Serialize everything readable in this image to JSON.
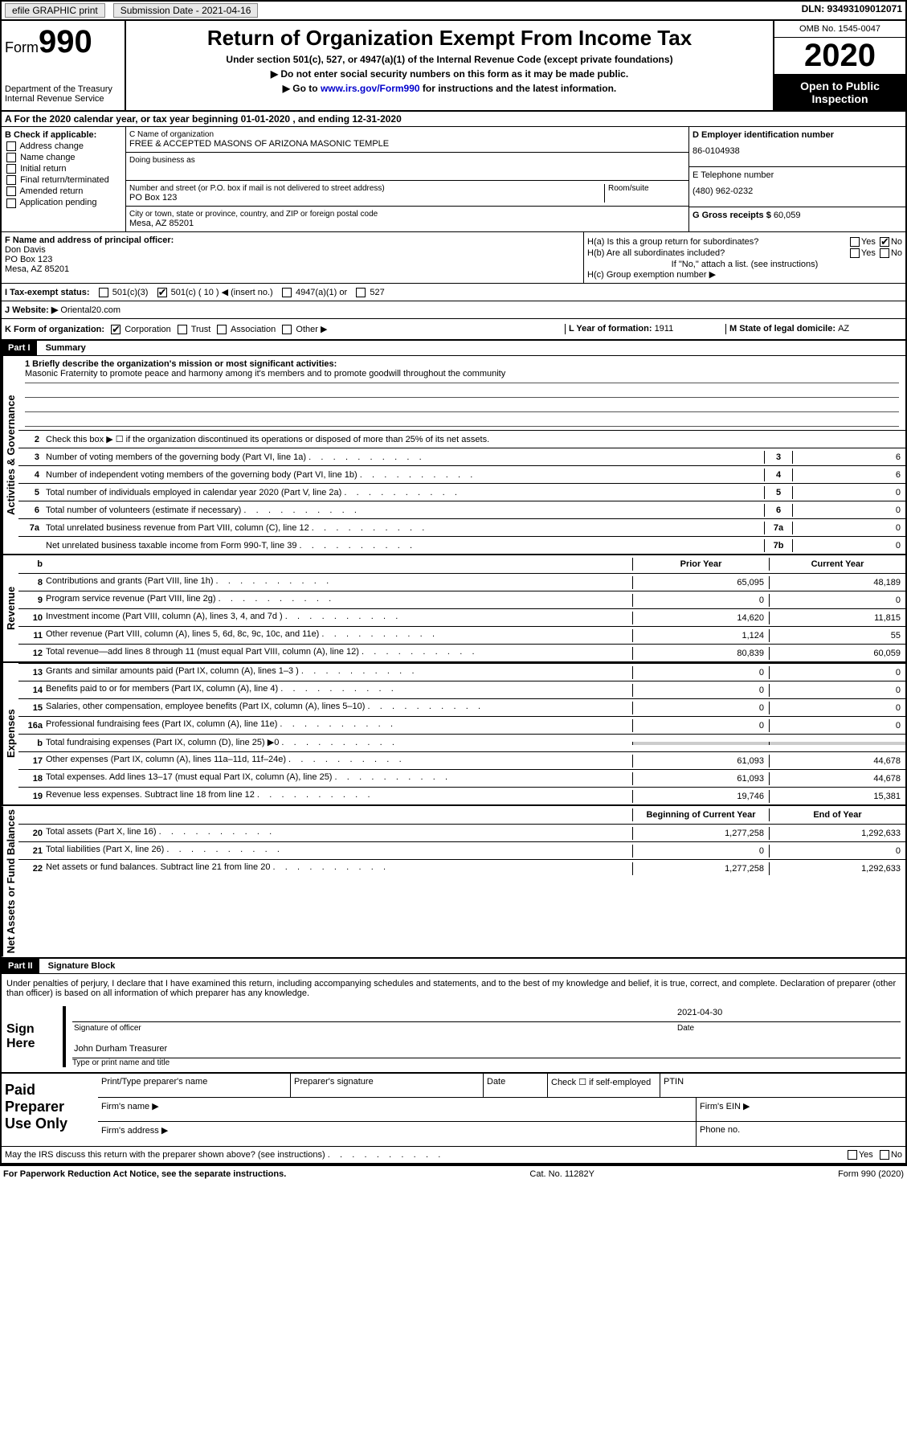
{
  "topbar": {
    "efile": "efile GRAPHIC print",
    "submission_date_label": "Submission Date - 2021-04-16",
    "dln": "DLN: 93493109012071"
  },
  "header": {
    "form_label": "Form",
    "form_number": "990",
    "title": "Return of Organization Exempt From Income Tax",
    "subtitle": "Under section 501(c), 527, or 4947(a)(1) of the Internal Revenue Code (except private foundations)",
    "ssn_line": "▶ Do not enter social security numbers on this form as it may be made public.",
    "goto_prefix": "▶ Go to ",
    "goto_link": "www.irs.gov/Form990",
    "goto_suffix": " for instructions and the latest information.",
    "dept": "Department of the Treasury\nInternal Revenue Service",
    "omb": "OMB No. 1545-0047",
    "year": "2020",
    "inspection": "Open to Public Inspection"
  },
  "row_a": "A For the 2020 calendar year, or tax year beginning 01-01-2020    , and ending 12-31-2020",
  "col_b": {
    "title": "B Check if applicable:",
    "items": [
      "Address change",
      "Name change",
      "Initial return",
      "Final return/terminated",
      "Amended return",
      "Application pending"
    ]
  },
  "col_c": {
    "name_caption": "C Name of organization",
    "name": "FREE & ACCEPTED MASONS OF ARIZONA MASONIC TEMPLE",
    "dba_caption": "Doing business as",
    "addr_caption": "Number and street (or P.O. box if mail is not delivered to street address)",
    "room_caption": "Room/suite",
    "addr": "PO Box 123",
    "city_caption": "City or town, state or province, country, and ZIP or foreign postal code",
    "city": "Mesa, AZ  85201"
  },
  "col_d": {
    "ein_label": "D Employer identification number",
    "ein": "86-0104938",
    "phone_label": "E Telephone number",
    "phone": "(480) 962-0232",
    "receipts_label": "G Gross receipts $ ",
    "receipts": "60,059"
  },
  "col_f": {
    "label": "F  Name and address of principal officer:",
    "name": "Don Davis",
    "addr1": "PO Box 123",
    "addr2": "Mesa, AZ   85201"
  },
  "col_h": {
    "ha": "H(a)  Is this a group return for subordinates?",
    "hb": "H(b)  Are all subordinates included?",
    "hb_note": "If \"No,\" attach a list. (see instructions)",
    "hc": "H(c)  Group exemption number ▶",
    "yes": "Yes",
    "no": "No"
  },
  "row_i": {
    "label": "I   Tax-exempt status:",
    "c3": "501(c)(3)",
    "c_other": "501(c) ( 10 ) ◀ (insert no.)",
    "a1": "4947(a)(1) or",
    "527": "527"
  },
  "row_j": {
    "label": "J   Website: ▶",
    "value": "Oriental20.com"
  },
  "row_k": {
    "label": "K Form of organization:",
    "corp": "Corporation",
    "trust": "Trust",
    "assoc": "Association",
    "other": "Other ▶",
    "l_label": "L Year of formation: ",
    "l_val": "1911",
    "m_label": "M State of legal domicile: ",
    "m_val": "AZ"
  },
  "part1": {
    "header": "Part I",
    "title": "Summary",
    "tabs": {
      "gov": "Activities & Governance",
      "rev": "Revenue",
      "exp": "Expenses",
      "net": "Net Assets or Fund Balances"
    },
    "line1_label": "1   Briefly describe the organization's mission or most significant activities:",
    "mission": "Masonic Fraternity to promote peace and harmony among it's members and to promote goodwill throughout the community",
    "line2": "Check this box ▶ ☐  if the organization discontinued its operations or disposed of more than 25% of its net assets.",
    "gov_lines": [
      {
        "n": "3",
        "t": "Number of voting members of the governing body (Part VI, line 1a)",
        "id": "3",
        "v": "6"
      },
      {
        "n": "4",
        "t": "Number of independent voting members of the governing body (Part VI, line 1b)",
        "id": "4",
        "v": "6"
      },
      {
        "n": "5",
        "t": "Total number of individuals employed in calendar year 2020 (Part V, line 2a)",
        "id": "5",
        "v": "0"
      },
      {
        "n": "6",
        "t": "Total number of volunteers (estimate if necessary)",
        "id": "6",
        "v": "0"
      },
      {
        "n": "7a",
        "t": "Total unrelated business revenue from Part VIII, column (C), line 12",
        "id": "7a",
        "v": "0"
      },
      {
        "n": "",
        "t": "Net unrelated business taxable income from Form 990-T, line 39",
        "id": "7b",
        "v": "0"
      }
    ],
    "col_headers": {
      "b": "b",
      "prior": "Prior Year",
      "current": "Current Year"
    },
    "rev_lines": [
      {
        "n": "8",
        "t": "Contributions and grants (Part VIII, line 1h)",
        "p": "65,095",
        "c": "48,189"
      },
      {
        "n": "9",
        "t": "Program service revenue (Part VIII, line 2g)",
        "p": "0",
        "c": "0"
      },
      {
        "n": "10",
        "t": "Investment income (Part VIII, column (A), lines 3, 4, and 7d )",
        "p": "14,620",
        "c": "11,815"
      },
      {
        "n": "11",
        "t": "Other revenue (Part VIII, column (A), lines 5, 6d, 8c, 9c, 10c, and 11e)",
        "p": "1,124",
        "c": "55"
      },
      {
        "n": "12",
        "t": "Total revenue—add lines 8 through 11 (must equal Part VIII, column (A), line 12)",
        "p": "80,839",
        "c": "60,059"
      }
    ],
    "exp_lines": [
      {
        "n": "13",
        "t": "Grants and similar amounts paid (Part IX, column (A), lines 1–3 )",
        "p": "0",
        "c": "0"
      },
      {
        "n": "14",
        "t": "Benefits paid to or for members (Part IX, column (A), line 4)",
        "p": "0",
        "c": "0"
      },
      {
        "n": "15",
        "t": "Salaries, other compensation, employee benefits (Part IX, column (A), lines 5–10)",
        "p": "0",
        "c": "0"
      },
      {
        "n": "16a",
        "t": "Professional fundraising fees (Part IX, column (A), line 11e)",
        "p": "0",
        "c": "0"
      },
      {
        "n": "b",
        "t": "Total fundraising expenses (Part IX, column (D), line 25) ▶0",
        "p": "",
        "c": "",
        "shaded": true
      },
      {
        "n": "17",
        "t": "Other expenses (Part IX, column (A), lines 11a–11d, 11f–24e)",
        "p": "61,093",
        "c": "44,678"
      },
      {
        "n": "18",
        "t": "Total expenses. Add lines 13–17 (must equal Part IX, column (A), line 25)",
        "p": "61,093",
        "c": "44,678"
      },
      {
        "n": "19",
        "t": "Revenue less expenses. Subtract line 18 from line 12",
        "p": "19,746",
        "c": "15,381"
      }
    ],
    "net_headers": {
      "prior": "Beginning of Current Year",
      "current": "End of Year"
    },
    "net_lines": [
      {
        "n": "20",
        "t": "Total assets (Part X, line 16)",
        "p": "1,277,258",
        "c": "1,292,633"
      },
      {
        "n": "21",
        "t": "Total liabilities (Part X, line 26)",
        "p": "0",
        "c": "0"
      },
      {
        "n": "22",
        "t": "Net assets or fund balances. Subtract line 21 from line 20",
        "p": "1,277,258",
        "c": "1,292,633"
      }
    ]
  },
  "part2": {
    "header": "Part II",
    "title": "Signature Block",
    "perjury": "Under penalties of perjury, I declare that I have examined this return, including accompanying schedules and statements, and to the best of my knowledge and belief, it is true, correct, and complete. Declaration of preparer (other than officer) is based on all information of which preparer has any knowledge.",
    "sign_here": "Sign Here",
    "sig_officer": "Signature of officer",
    "sig_date_label": "Date",
    "sig_date": "2021-04-30",
    "sig_name": "John Durham  Treasurer",
    "sig_name_label": "Type or print name and title",
    "paid_label": "Paid Preparer Use Only",
    "prep_name": "Print/Type preparer's name",
    "prep_sig": "Preparer's signature",
    "prep_date": "Date",
    "prep_check": "Check ☐ if self-employed",
    "prep_ptin": "PTIN",
    "firm_name": "Firm's name    ▶",
    "firm_ein": "Firm's EIN ▶",
    "firm_addr": "Firm's address ▶",
    "firm_phone": "Phone no.",
    "discuss": "May the IRS discuss this return with the preparer shown above? (see instructions)"
  },
  "footer": {
    "paperwork": "For Paperwork Reduction Act Notice, see the separate instructions.",
    "cat": "Cat. No. 11282Y",
    "form": "Form 990 (2020)"
  }
}
